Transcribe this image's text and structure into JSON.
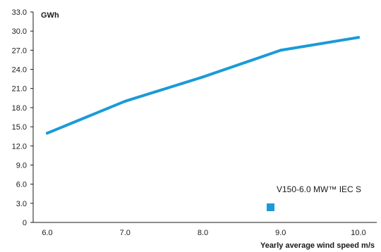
{
  "chart_data": {
    "type": "line",
    "ylabel": "GWh",
    "xlabel": "Yearly average wind speed m/s",
    "x": [
      6.0,
      7.0,
      8.0,
      9.0,
      10.0
    ],
    "series": [
      {
        "name": "V150-6.0 MW™ IEC S",
        "values": [
          14.0,
          19.0,
          22.8,
          27.0,
          29.0
        ]
      }
    ],
    "xlim": [
      6.0,
      10.0
    ],
    "ylim": [
      0,
      33.0
    ],
    "xticks": [
      "6.0",
      "7.0",
      "8.0",
      "9.0",
      "10.0"
    ],
    "yticks": [
      "0",
      "3.0",
      "6.0",
      "9.0",
      "12.0",
      "15.0",
      "18.0",
      "21.0",
      "24.0",
      "27.0",
      "30.0",
      "33.0"
    ],
    "grid": false,
    "legend_position": "bottom-right",
    "colors": {
      "series": "#1a9ad8",
      "axis": "#1a1a1a"
    }
  }
}
